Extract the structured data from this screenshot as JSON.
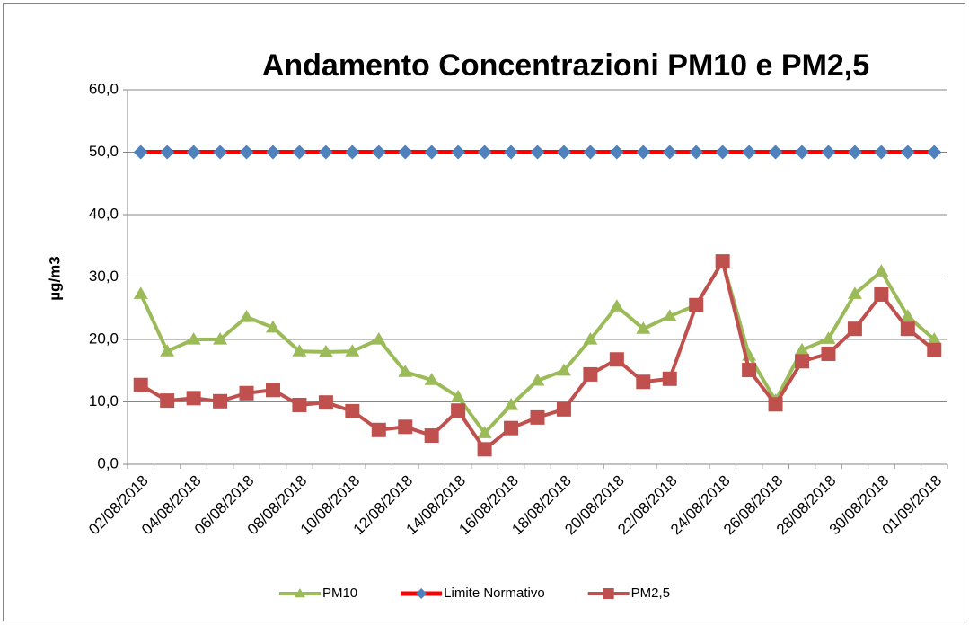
{
  "chart_data": {
    "type": "line",
    "title": "Andamento Concentrazioni PM10 e PM2,5",
    "y_label": "µg/m3",
    "categories": [
      "02/08/2018",
      null,
      "04/08/2018",
      null,
      "06/08/2018",
      null,
      "08/08/2018",
      null,
      "10/08/2018",
      null,
      "12/08/2018",
      null,
      "14/08/2018",
      null,
      "16/08/2018",
      null,
      "18/08/2018",
      null,
      "20/08/2018",
      null,
      "22/08/2018",
      null,
      "24/08/2018",
      null,
      "26/08/2018",
      null,
      "28/08/2018",
      null,
      "30/08/2018",
      null,
      "01/09/2018"
    ],
    "series": [
      {
        "name": "PM10",
        "color": "#9bbb59",
        "marker": "triangle",
        "marker_color": "#9bbb59",
        "values": [
          27.3,
          18.1,
          20.0,
          20.0,
          23.6,
          21.9,
          18.1,
          18.0,
          18.1,
          20.0,
          14.8,
          13.5,
          10.8,
          5.0,
          9.5,
          13.4,
          15.0,
          20.0,
          25.3,
          21.7,
          23.7,
          25.5,
          32.5,
          17.4,
          10.2,
          18.3,
          20.1,
          27.3,
          30.9,
          23.7,
          20.0
        ]
      },
      {
        "name": "Limite Normativo",
        "color": "#ff0000",
        "marker": "diamond",
        "marker_color": "#4f81bd",
        "values": [
          50,
          50,
          50,
          50,
          50,
          50,
          50,
          50,
          50,
          50,
          50,
          50,
          50,
          50,
          50,
          50,
          50,
          50,
          50,
          50,
          50,
          50,
          50,
          50,
          50,
          50,
          50,
          50,
          50,
          50,
          50
        ]
      },
      {
        "name": "PM2,5",
        "color": "#c0504d",
        "marker": "square",
        "marker_color": "#c0504d",
        "values": [
          12.7,
          10.2,
          10.6,
          10.1,
          11.4,
          11.9,
          9.5,
          9.9,
          8.5,
          5.5,
          6.0,
          4.6,
          8.6,
          2.4,
          5.8,
          7.5,
          8.8,
          14.4,
          16.8,
          13.2,
          13.7,
          25.5,
          32.5,
          15.1,
          9.6,
          16.5,
          17.7,
          21.7,
          27.2,
          21.7,
          18.3
        ]
      }
    ],
    "ylim": [
      0,
      60
    ],
    "yticks": [
      {
        "value": 0,
        "label": "0,0"
      },
      {
        "value": 10,
        "label": "10,0"
      },
      {
        "value": 20,
        "label": "20,0"
      },
      {
        "value": 30,
        "label": "30,0"
      },
      {
        "value": 40,
        "label": "40,0"
      },
      {
        "value": 50,
        "label": "50,0"
      },
      {
        "value": 60,
        "label": "60,0"
      }
    ],
    "grid": true,
    "legend": "bottom"
  }
}
